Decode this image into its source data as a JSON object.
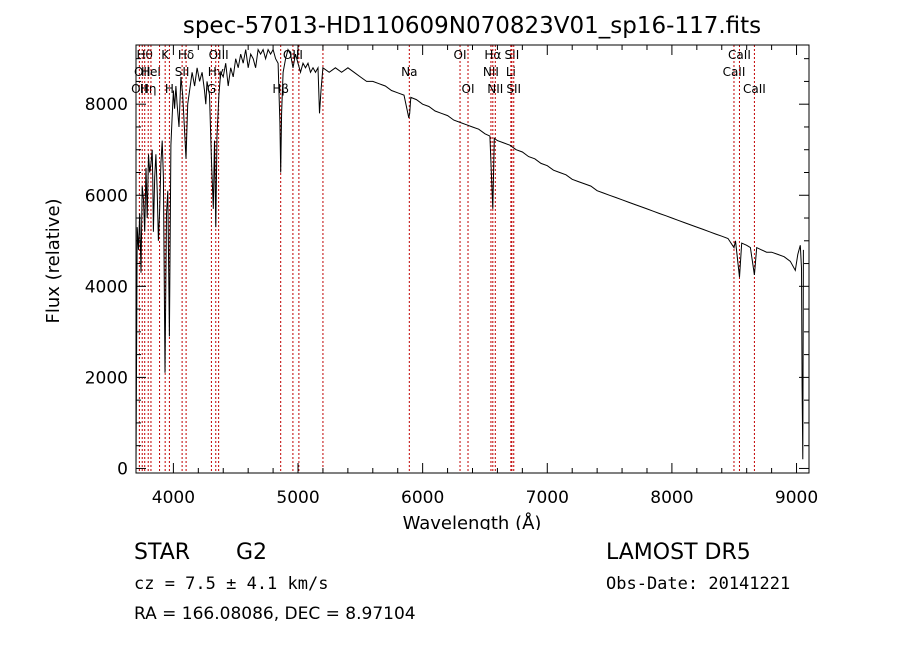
{
  "chart_data": {
    "type": "line",
    "title": "spec-57013-HD110609N070823V01_sp16-117.fits",
    "xlabel": "Wavelength (Å)",
    "ylabel": "Flux (relative)",
    "xlim": [
      3700,
      9100
    ],
    "ylim": [
      -100,
      9300
    ],
    "xticks": [
      4000,
      5000,
      6000,
      7000,
      8000,
      9000
    ],
    "yticks": [
      0,
      2000,
      4000,
      6000,
      8000
    ],
    "grid": false,
    "line_color": "#000000",
    "marker_color": "#c00000",
    "series": [
      {
        "points": [
          [
            3700,
            0
          ],
          [
            3705,
            2600
          ],
          [
            3710,
            5300
          ],
          [
            3720,
            4800
          ],
          [
            3730,
            5600
          ],
          [
            3740,
            4300
          ],
          [
            3750,
            6200
          ],
          [
            3760,
            5900
          ],
          [
            3770,
            5200
          ],
          [
            3780,
            6600
          ],
          [
            3790,
            5500
          ],
          [
            3800,
            6900
          ],
          [
            3810,
            6500
          ],
          [
            3820,
            6700
          ],
          [
            3830,
            7000
          ],
          [
            3835,
            6300
          ],
          [
            3840,
            5200
          ],
          [
            3850,
            6400
          ],
          [
            3860,
            6900
          ],
          [
            3870,
            6100
          ],
          [
            3880,
            5000
          ],
          [
            3890,
            5700
          ],
          [
            3900,
            6700
          ],
          [
            3910,
            7200
          ],
          [
            3920,
            6400
          ],
          [
            3933,
            2100
          ],
          [
            3945,
            5600
          ],
          [
            3955,
            6100
          ],
          [
            3968,
            2900
          ],
          [
            3980,
            7100
          ],
          [
            3990,
            7700
          ],
          [
            4000,
            8300
          ],
          [
            4010,
            7900
          ],
          [
            4020,
            8400
          ],
          [
            4030,
            8000
          ],
          [
            4045,
            7500
          ],
          [
            4060,
            8600
          ],
          [
            4075,
            8200
          ],
          [
            4090,
            7400
          ],
          [
            4101,
            6800
          ],
          [
            4115,
            8000
          ],
          [
            4130,
            8300
          ],
          [
            4150,
            8700
          ],
          [
            4170,
            8400
          ],
          [
            4190,
            8800
          ],
          [
            4210,
            8500
          ],
          [
            4230,
            8700
          ],
          [
            4250,
            8300
          ],
          [
            4260,
            8000
          ],
          [
            4270,
            8500
          ],
          [
            4290,
            8200
          ],
          [
            4305,
            6800
          ],
          [
            4320,
            5700
          ],
          [
            4330,
            7200
          ],
          [
            4340,
            5300
          ],
          [
            4350,
            7300
          ],
          [
            4365,
            8200
          ],
          [
            4380,
            8700
          ],
          [
            4400,
            8600
          ],
          [
            4420,
            8900
          ],
          [
            4440,
            8400
          ],
          [
            4460,
            8800
          ],
          [
            4480,
            8600
          ],
          [
            4500,
            9000
          ],
          [
            4520,
            8800
          ],
          [
            4540,
            9100
          ],
          [
            4560,
            8900
          ],
          [
            4580,
            9200
          ],
          [
            4600,
            8800
          ],
          [
            4620,
            9100
          ],
          [
            4640,
            9000
          ],
          [
            4660,
            8800
          ],
          [
            4680,
            9200
          ],
          [
            4700,
            9100
          ],
          [
            4720,
            9200
          ],
          [
            4740,
            9000
          ],
          [
            4760,
            9200
          ],
          [
            4780,
            9100
          ],
          [
            4800,
            9200
          ],
          [
            4820,
            9000
          ],
          [
            4840,
            8900
          ],
          [
            4855,
            7600
          ],
          [
            4861,
            6500
          ],
          [
            4868,
            7800
          ],
          [
            4880,
            8700
          ],
          [
            4900,
            9000
          ],
          [
            4920,
            9200
          ],
          [
            4940,
            9100
          ],
          [
            4960,
            8800
          ],
          [
            4980,
            9100
          ],
          [
            5000,
            8900
          ],
          [
            5020,
            8700
          ],
          [
            5040,
            8900
          ],
          [
            5060,
            8800
          ],
          [
            5080,
            8900
          ],
          [
            5100,
            8700
          ],
          [
            5120,
            8800
          ],
          [
            5140,
            8700
          ],
          [
            5160,
            8800
          ],
          [
            5172,
            7800
          ],
          [
            5184,
            8300
          ],
          [
            5200,
            8800
          ],
          [
            5250,
            8700
          ],
          [
            5300,
            8800
          ],
          [
            5350,
            8700
          ],
          [
            5400,
            8800
          ],
          [
            5450,
            8700
          ],
          [
            5500,
            8600
          ],
          [
            5550,
            8500
          ],
          [
            5600,
            8500
          ],
          [
            5650,
            8450
          ],
          [
            5700,
            8400
          ],
          [
            5750,
            8300
          ],
          [
            5800,
            8250
          ],
          [
            5850,
            8200
          ],
          [
            5889,
            7700
          ],
          [
            5896,
            7800
          ],
          [
            5905,
            8150
          ],
          [
            5950,
            8100
          ],
          [
            6000,
            8000
          ],
          [
            6050,
            7950
          ],
          [
            6100,
            7850
          ],
          [
            6150,
            7800
          ],
          [
            6200,
            7750
          ],
          [
            6250,
            7650
          ],
          [
            6300,
            7600
          ],
          [
            6350,
            7550
          ],
          [
            6400,
            7500
          ],
          [
            6450,
            7450
          ],
          [
            6500,
            7350
          ],
          [
            6540,
            7300
          ],
          [
            6563,
            5700
          ],
          [
            6575,
            7250
          ],
          [
            6600,
            7200
          ],
          [
            6650,
            7150
          ],
          [
            6700,
            7100
          ],
          [
            6750,
            7000
          ],
          [
            6800,
            6950
          ],
          [
            6850,
            6850
          ],
          [
            6900,
            6800
          ],
          [
            6950,
            6700
          ],
          [
            7000,
            6650
          ],
          [
            7050,
            6550
          ],
          [
            7100,
            6500
          ],
          [
            7150,
            6450
          ],
          [
            7200,
            6350
          ],
          [
            7250,
            6300
          ],
          [
            7300,
            6250
          ],
          [
            7350,
            6200
          ],
          [
            7400,
            6100
          ],
          [
            7450,
            6050
          ],
          [
            7500,
            6000
          ],
          [
            7550,
            5950
          ],
          [
            7600,
            5900
          ],
          [
            7650,
            5850
          ],
          [
            7700,
            5800
          ],
          [
            7750,
            5750
          ],
          [
            7800,
            5700
          ],
          [
            7850,
            5650
          ],
          [
            7900,
            5600
          ],
          [
            7950,
            5550
          ],
          [
            8000,
            5500
          ],
          [
            8050,
            5450
          ],
          [
            8100,
            5400
          ],
          [
            8150,
            5350
          ],
          [
            8200,
            5300
          ],
          [
            8250,
            5250
          ],
          [
            8300,
            5200
          ],
          [
            8350,
            5150
          ],
          [
            8400,
            5100
          ],
          [
            8450,
            5050
          ],
          [
            8498,
            4850
          ],
          [
            8510,
            5000
          ],
          [
            8542,
            4200
          ],
          [
            8560,
            4950
          ],
          [
            8600,
            4900
          ],
          [
            8630,
            4850
          ],
          [
            8662,
            4250
          ],
          [
            8680,
            4850
          ],
          [
            8720,
            4800
          ],
          [
            8760,
            4750
          ],
          [
            8800,
            4750
          ],
          [
            8850,
            4700
          ],
          [
            8900,
            4650
          ],
          [
            8950,
            4550
          ],
          [
            8990,
            4350
          ],
          [
            9010,
            4700
          ],
          [
            9030,
            4900
          ],
          [
            9040,
            4400
          ],
          [
            9045,
            1800
          ],
          [
            9050,
            200
          ],
          [
            9055,
            4800
          ]
        ]
      }
    ],
    "line_markers": [
      {
        "x": 3727,
        "label": "OII",
        "row": 2
      },
      {
        "x": 3750,
        "label": "OII",
        "row": 1
      },
      {
        "x": 3770,
        "label": "Hθ",
        "row": 0
      },
      {
        "x": 3798,
        "label": "Hη",
        "row": 2
      },
      {
        "x": 3820,
        "label": "HeI",
        "row": 1
      },
      {
        "x": 3889,
        "label": "",
        "row": 0
      },
      {
        "x": 3934,
        "label": "K",
        "row": 0
      },
      {
        "x": 3968,
        "label": "H",
        "row": 2
      },
      {
        "x": 4070,
        "label": "SII",
        "row": 1
      },
      {
        "x": 4102,
        "label": "Hδ",
        "row": 0
      },
      {
        "x": 4305,
        "label": "G",
        "row": 2
      },
      {
        "x": 4340,
        "label": "Hγ",
        "row": 1
      },
      {
        "x": 4363,
        "label": "OIII",
        "row": 0
      },
      {
        "x": 4861,
        "label": "Hβ",
        "row": 2
      },
      {
        "x": 4959,
        "label": "OIII",
        "row": 0
      },
      {
        "x": 5007,
        "label": "",
        "row": 0
      },
      {
        "x": 5200,
        "label": "",
        "row": 0
      },
      {
        "x": 5893,
        "label": "Na",
        "row": 1
      },
      {
        "x": 6300,
        "label": "OI",
        "row": 0
      },
      {
        "x": 6364,
        "label": "OI",
        "row": 2
      },
      {
        "x": 6548,
        "label": "NII",
        "row": 1
      },
      {
        "x": 6563,
        "label": "Hα",
        "row": 0
      },
      {
        "x": 6583,
        "label": "NII",
        "row": 2
      },
      {
        "x": 6708,
        "label": "Li",
        "row": 1
      },
      {
        "x": 6716,
        "label": "SII",
        "row": 0
      },
      {
        "x": 6731,
        "label": "SII",
        "row": 2
      },
      {
        "x": 8498,
        "label": "CaII",
        "row": 1
      },
      {
        "x": 8542,
        "label": "CaII",
        "row": 0
      },
      {
        "x": 8662,
        "label": "CaII",
        "row": 2
      }
    ]
  },
  "info": {
    "object_class": "STAR",
    "subclass": "G2",
    "survey": "LAMOST DR5",
    "cz": "cz = 7.5 ± 4.1 km/s",
    "obs_date": "Obs-Date: 20141221",
    "radec": "RA = 166.08086, DEC =   8.97104"
  }
}
